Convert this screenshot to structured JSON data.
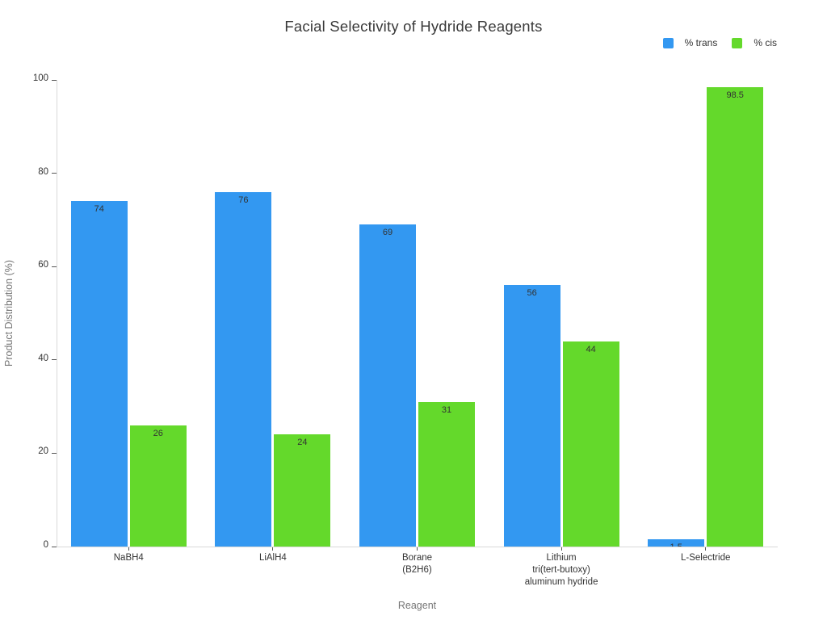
{
  "chart_data": {
    "type": "bar",
    "title": "Facial Selectivity of Hydride Reagents",
    "xlabel": "Reagent",
    "ylabel": "Product Distribution (%)",
    "ylim": [
      0,
      100
    ],
    "yticks": [
      0,
      20,
      40,
      60,
      80,
      100
    ],
    "grid": false,
    "legend_position": "top-right",
    "categories": [
      "NaBH4",
      "LiAlH4",
      "Borane (B2H6)",
      "Lithium tri(tert-butoxy) aluminum hydride",
      "L-Selectride"
    ],
    "category_label_lines": [
      [
        "NaBH4"
      ],
      [
        "LiAlH4"
      ],
      [
        "Borane",
        "(B2H6)"
      ],
      [
        "Lithium",
        "tri(tert-butoxy)",
        "aluminum hydride"
      ],
      [
        "L-Selectride"
      ]
    ],
    "series": [
      {
        "name": "% trans",
        "color": "#3398f1",
        "values": [
          74,
          76,
          69,
          56,
          1.5
        ],
        "value_labels": [
          "74",
          "76",
          "69",
          "56",
          "1.5"
        ]
      },
      {
        "name": "% cis",
        "color": "#64d92b",
        "values": [
          26,
          24,
          31,
          44,
          98.5
        ],
        "value_labels": [
          "26",
          "24",
          "31",
          "44",
          "98.5"
        ]
      }
    ]
  }
}
